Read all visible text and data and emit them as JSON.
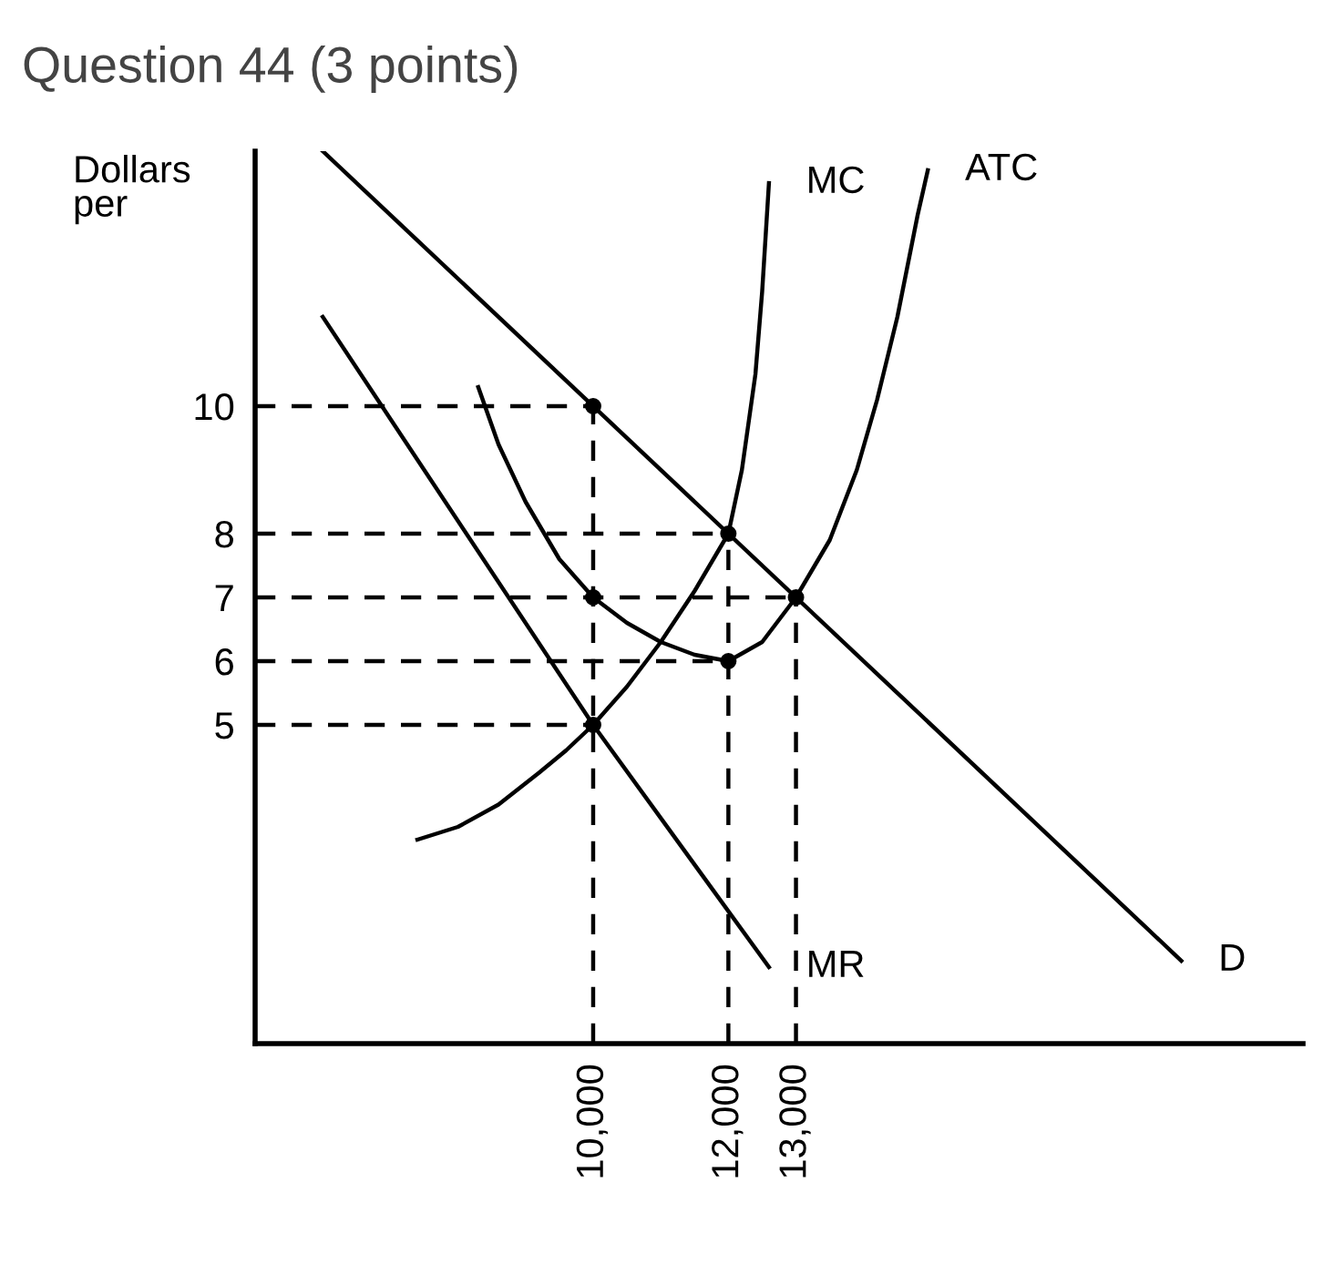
{
  "chart_data": {
    "type": "line",
    "title": "Question 44 (3 points)",
    "ylabel": "Dollars\nper",
    "xlim": [
      5000,
      20500
    ],
    "ylim": [
      0,
      14
    ],
    "xticks": [
      {
        "value": 10000,
        "label": "10,000"
      },
      {
        "value": 12000,
        "label": "12,000"
      },
      {
        "value": 13000,
        "label": "13,000"
      }
    ],
    "yticks": [
      5,
      6,
      7,
      8,
      10
    ],
    "grid": false,
    "legend": false,
    "series": [
      {
        "name": "D",
        "color": "#000000",
        "x": [
          6000,
          18700
        ],
        "values": [
          14,
          1.3
        ]
      },
      {
        "name": "MR",
        "color": "#000000",
        "x": [
          6000,
          10000,
          12600
        ],
        "values": [
          11.4,
          5,
          1.2
        ]
      },
      {
        "name": "MC",
        "color": "#000000",
        "x": [
          7400,
          8000,
          8600,
          9200,
          9600,
          10000,
          10500,
          11000,
          11500,
          12000,
          12200,
          12400,
          12500,
          12600
        ],
        "values": [
          3.2,
          3.4,
          3.75,
          4.25,
          4.6,
          5,
          5.6,
          6.3,
          7.1,
          8,
          9,
          10.5,
          11.8,
          13.5
        ]
      },
      {
        "name": "ATC",
        "color": "#000000",
        "x": [
          8300,
          8600,
          9000,
          9500,
          10000,
          10500,
          11000,
          11500,
          12000,
          12500,
          13000,
          13500,
          13900,
          14200,
          14500,
          14800,
          14950
        ],
        "values": [
          10.3,
          9.4,
          8.5,
          7.6,
          7,
          6.6,
          6.3,
          6.1,
          6,
          6.3,
          7,
          7.9,
          9,
          10.1,
          11.4,
          13,
          13.7
        ]
      },
      {
        "color": "#000000",
        "line_style": "dashed",
        "x": [
          5000,
          10000
        ],
        "values": [
          10,
          10
        ]
      },
      {
        "color": "#000000",
        "line_style": "dashed",
        "x": [
          5000,
          12000
        ],
        "values": [
          8,
          8
        ]
      },
      {
        "color": "#000000",
        "line_style": "dashed",
        "x": [
          5000,
          13000
        ],
        "values": [
          7,
          7
        ]
      },
      {
        "color": "#000000",
        "line_style": "dashed",
        "x": [
          5000,
          12000
        ],
        "values": [
          6,
          6
        ]
      },
      {
        "color": "#000000",
        "line_style": "dashed",
        "x": [
          5000,
          10000
        ],
        "values": [
          5,
          5
        ]
      },
      {
        "color": "#000000",
        "line_style": "dashed",
        "x": [
          10000,
          10000
        ],
        "values": [
          0,
          10
        ]
      },
      {
        "color": "#000000",
        "line_style": "dashed",
        "x": [
          12000,
          12000
        ],
        "values": [
          0,
          8
        ]
      },
      {
        "color": "#000000",
        "line_style": "dashed",
        "x": [
          13000,
          13000
        ],
        "values": [
          0,
          7
        ]
      },
      {
        "type": "scatter",
        "marker": "circle",
        "color": "#000000",
        "x": [
          10000,
          12000,
          10000,
          13000,
          12000,
          10000
        ],
        "values": [
          10,
          8,
          7,
          7,
          6,
          5
        ]
      }
    ]
  }
}
